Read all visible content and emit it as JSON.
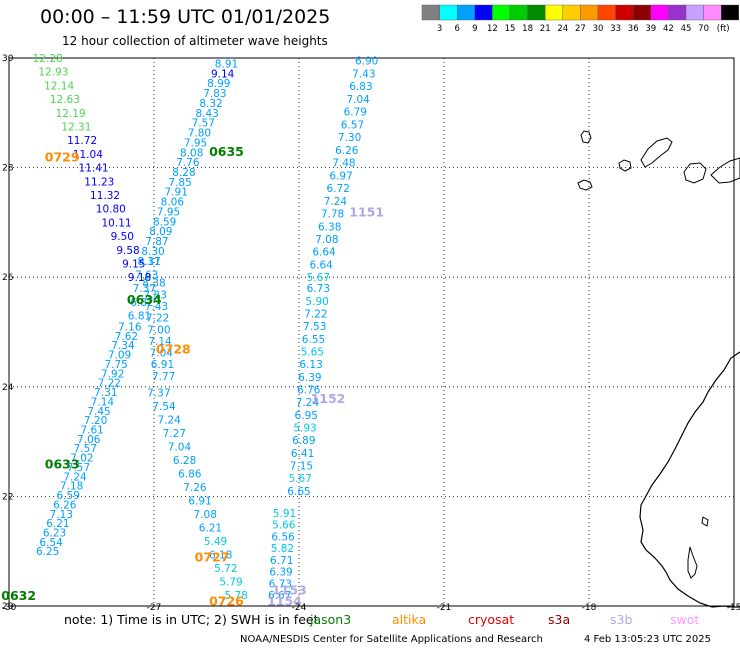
{
  "header": {
    "title": "00:00 – 11:59 UTC 01/01/2025",
    "subtitle": "12 hour collection of altimeter wave heights"
  },
  "colorbar": {
    "ticks": [
      "3",
      "6",
      "9",
      "12",
      "15",
      "18",
      "21",
      "24",
      "27",
      "30",
      "33",
      "36",
      "39",
      "42",
      "45",
      "70"
    ],
    "unit": "(ft)",
    "colors": [
      "#808080",
      "#00ffff",
      "#00a0ff",
      "#0000ff",
      "#00ff00",
      "#00cd00",
      "#008b00",
      "#ffff00",
      "#ffcd00",
      "#ff9900",
      "#ff4500",
      "#cd0000",
      "#8b0000",
      "#ff00ff",
      "#9932cc",
      "#c8a0ff",
      "#ff8cff",
      "#000000"
    ]
  },
  "map": {
    "lon_range": [
      -30,
      -15
    ],
    "lat_range": [
      20,
      30
    ],
    "lon_ticks": [
      "-30",
      "-27",
      "-24",
      "-21",
      "-18",
      "-15"
    ],
    "lat_ticks": [
      "30",
      "28",
      "26",
      "24",
      "22",
      "20"
    ],
    "grid_lons": [
      -27,
      -24,
      -21,
      -18
    ],
    "grid_lats": [
      28,
      26,
      24,
      22
    ],
    "pass_labels": [
      {
        "text": "0729",
        "lon": -28.9,
        "lat": 28.2,
        "color": "#ff8c00"
      },
      {
        "text": "0635",
        "lon": -25.5,
        "lat": 28.3,
        "color": "#008000"
      },
      {
        "text": "1151",
        "lon": -22.6,
        "lat": 27.2,
        "color": "#b3a6e6"
      },
      {
        "text": "0634",
        "lon": -27.2,
        "lat": 25.6,
        "color": "#008000"
      },
      {
        "text": "0728",
        "lon": -26.6,
        "lat": 24.7,
        "color": "#ff8c00"
      },
      {
        "text": "1152",
        "lon": -23.4,
        "lat": 23.8,
        "color": "#b3a6e6"
      },
      {
        "text": "0633",
        "lon": -28.9,
        "lat": 22.6,
        "color": "#008000"
      },
      {
        "text": "0727",
        "lon": -25.8,
        "lat": 20.9,
        "color": "#ff8c00"
      },
      {
        "text": "1153",
        "lon": -24.2,
        "lat": 20.3,
        "color": "#b3a6e6"
      },
      {
        "text": "1154",
        "lon": -24.3,
        "lat": 20.1,
        "color": "#b3a6e6"
      },
      {
        "text": "0632",
        "lon": -29.8,
        "lat": 20.2,
        "color": "#008000"
      },
      {
        "text": "0726",
        "lon": -25.5,
        "lat": 20.1,
        "color": "#ff8c00"
      }
    ],
    "tracks": [
      {
        "name": "0635",
        "lon0": -25.5,
        "lat0": 29.9,
        "lon1": -27.1,
        "lat1": 26.3,
        "values": [
          "8.91",
          "9.14",
          "8.99",
          "7.83",
          "8.32",
          "8.43",
          "7.57",
          "7.80",
          "7.95",
          "8.08",
          "7.76",
          "8.28",
          "7.85",
          "7.91",
          "8.06",
          "7.95",
          "8.59",
          "8.09",
          "7.87",
          "8.30",
          "8.17"
        ]
      },
      {
        "name": "0634",
        "lon0": -27.1,
        "lat0": 26.3,
        "lon1": -27.3,
        "lat1": 25.3,
        "values": [
          "8.31",
          "7.63",
          "7.37",
          "6.82",
          "6.81"
        ]
      },
      {
        "name": "0633",
        "lon0": -27.5,
        "lat0": 25.1,
        "lon1": -29.2,
        "lat1": 21.0,
        "values": [
          "7.16",
          "7.62",
          "7.34",
          "7.09",
          "7.75",
          "7.92",
          "7.22",
          "7.31",
          "7.14",
          "7.45",
          "7.20",
          "7.61",
          "7.06",
          "7.57",
          "7.02",
          "7.57",
          "7.24",
          "7.18",
          "6.59",
          "6.26",
          "7.13",
          "6.21",
          "6.23",
          "6.54",
          "6.25"
        ]
      },
      {
        "name": "0729",
        "lon0": -29.2,
        "lat0": 30.0,
        "lon1": -27.3,
        "lat1": 26.0,
        "values": [
          "12.28",
          "12.93",
          "12.14",
          "12.63",
          "12.19",
          "12.31",
          "11.72",
          "11.04",
          "11.41",
          "11.23",
          "11.32",
          "10.80",
          "10.11",
          "9.50",
          "9.58",
          "9.15",
          "9.18"
        ]
      },
      {
        "name": "0728",
        "lon0": -27.0,
        "lat0": 25.9,
        "lon1": -26.8,
        "lat1": 24.2,
        "values": [
          "8.38",
          "7.83",
          "7.43",
          "7.22",
          "7.00",
          "7.14",
          "7.04",
          "6.91",
          "7.77"
        ]
      },
      {
        "name": "0727",
        "lon0": -26.9,
        "lat0": 23.9,
        "lon1": -25.3,
        "lat1": 20.2,
        "values": [
          "7.37",
          "7.54",
          "7.24",
          "7.27",
          "7.04",
          "6.28",
          "6.86",
          "7.26",
          "6.91",
          "7.08",
          "6.21",
          "5.49",
          "6.18",
          "5.72",
          "5.79",
          "5.78"
        ]
      },
      {
        "name": "1151",
        "lon0": -22.6,
        "lat0": 29.95,
        "lon1": -23.6,
        "lat1": 26.0,
        "values": [
          "6.90",
          "7.43",
          "6.83",
          "7.04",
          "6.79",
          "6.57",
          "7.30",
          "6.26",
          "7.48",
          "6.97",
          "6.72",
          "7.24",
          "7.78",
          "6.38",
          "7.08",
          "6.64",
          "6.64",
          "5.67"
        ]
      },
      {
        "name": "1152",
        "lon0": -23.6,
        "lat0": 25.8,
        "lon1": -24.0,
        "lat1": 22.1,
        "values": [
          "6.73",
          "5.90",
          "7.22",
          "7.53",
          "6.55",
          "5.65",
          "6.13",
          "6.39",
          "6.76",
          "7.24",
          "6.95",
          "5.93",
          "6.89",
          "6.41",
          "7.15",
          "5.67",
          "6.65"
        ]
      },
      {
        "name": "1153",
        "lon0": -24.3,
        "lat0": 21.7,
        "lon1": -24.4,
        "lat1": 20.2,
        "values": [
          "5.91",
          "5.66",
          "6.56",
          "5.82",
          "6.71",
          "6.39",
          "6.73",
          "6.67"
        ]
      }
    ]
  },
  "footer": {
    "note": "note:  1) Time is in UTC;  2) SWH is in feet",
    "satellites": [
      {
        "name": "jason3",
        "color": "#008000"
      },
      {
        "name": "altika",
        "color": "#ff8c00"
      },
      {
        "name": "cryosat",
        "color": "#e00000"
      },
      {
        "name": "s3a",
        "color": "#8b0000"
      },
      {
        "name": "s3b",
        "color": "#b3a6e6"
      },
      {
        "name": "swot",
        "color": "#ff99ff"
      }
    ],
    "credit": "NOAA/NESDIS Center for Satellite Applications and Research",
    "timestamp": "4 Feb 13:05:23 UTC 2025"
  }
}
